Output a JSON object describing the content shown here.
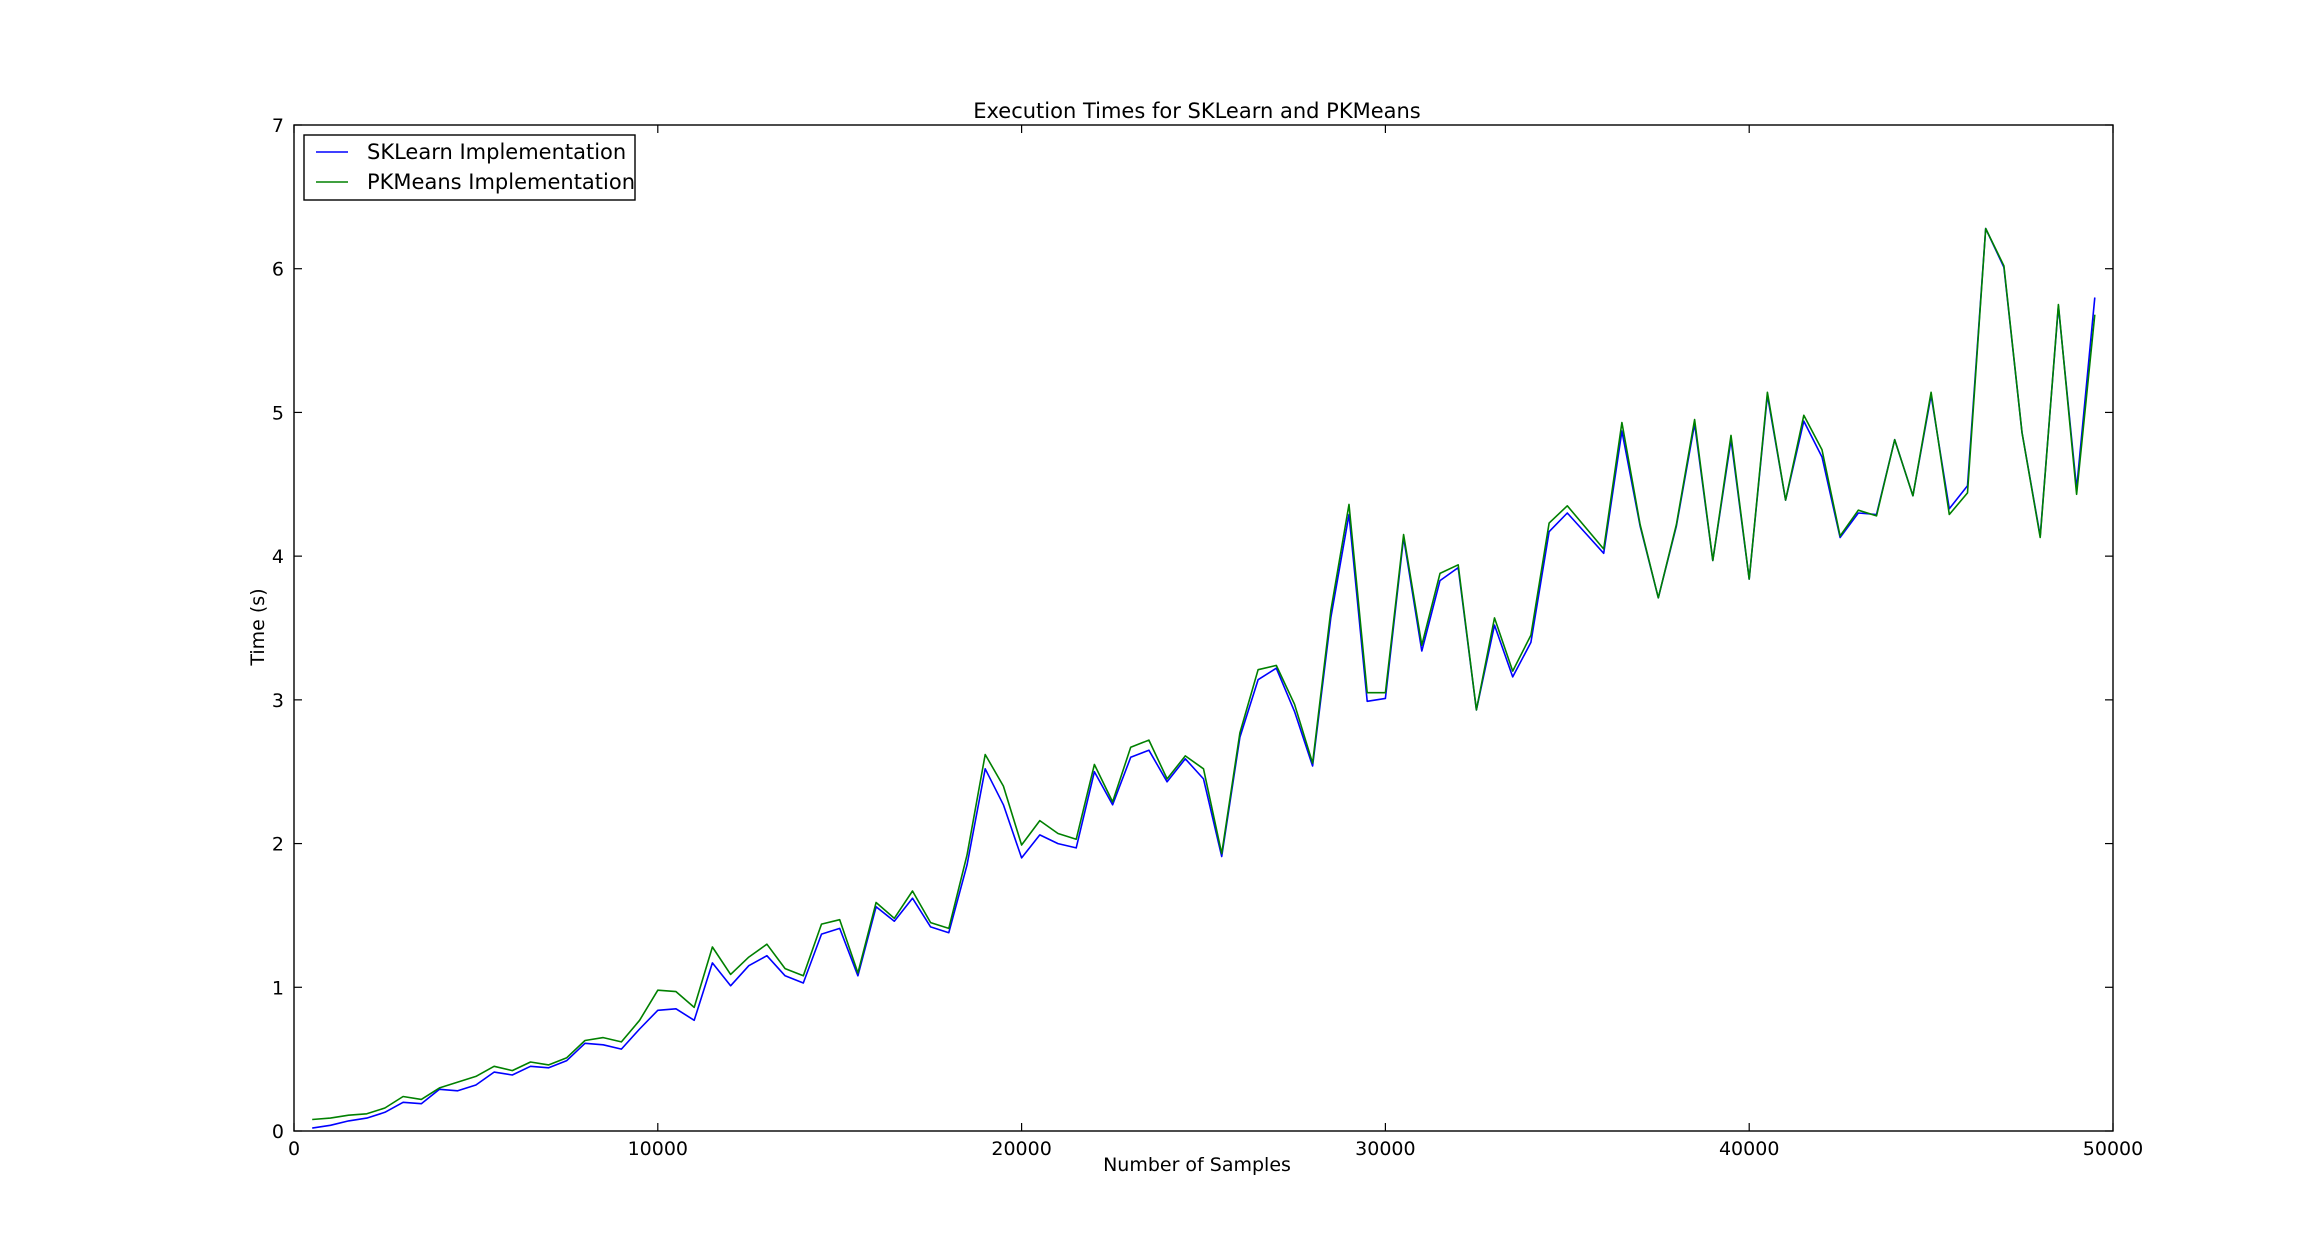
{
  "chart_data": {
    "type": "line",
    "title": "Execution Times for SKLearn and PKMeans",
    "xlabel": "Number of Samples",
    "ylabel": "Time (s)",
    "xlim": [
      0,
      50000
    ],
    "ylim": [
      0,
      7
    ],
    "xticks": [
      0,
      10000,
      20000,
      30000,
      40000,
      50000
    ],
    "xtick_labels": [
      "0",
      "10000",
      "20000",
      "30000",
      "40000",
      "50000"
    ],
    "yticks": [
      0,
      1,
      2,
      3,
      4,
      5,
      6,
      7
    ],
    "ytick_labels": [
      "0",
      "1",
      "2",
      "3",
      "4",
      "5",
      "6",
      "7"
    ],
    "grid": false,
    "legend_position": "top-left",
    "x": [
      500,
      1000,
      1500,
      2000,
      2500,
      3000,
      3500,
      4000,
      4500,
      5000,
      5500,
      6000,
      6500,
      7000,
      7500,
      8000,
      8500,
      9000,
      9500,
      10000,
      10500,
      11000,
      11500,
      12000,
      12500,
      13000,
      13500,
      14000,
      14500,
      15000,
      15500,
      16000,
      16500,
      17000,
      17500,
      18000,
      18500,
      19000,
      19500,
      20000,
      20500,
      21000,
      21500,
      22000,
      22500,
      23000,
      23500,
      24000,
      24500,
      25000,
      25500,
      26000,
      26500,
      27000,
      27500,
      28000,
      28500,
      29000,
      29500,
      30000,
      30500,
      31000,
      31500,
      32000,
      32500,
      33000,
      33500,
      34000,
      34500,
      35000,
      35500,
      36000,
      36500,
      37000,
      37500,
      38000,
      38500,
      39000,
      39500,
      40000,
      40500,
      41000,
      41500,
      42000,
      42500,
      43000,
      43500,
      44000,
      44500,
      45000,
      45500,
      46000,
      46500,
      47000,
      47500,
      48000,
      48500,
      49000,
      49500
    ],
    "series": [
      {
        "name": "SKLearn Implementation",
        "color": "#0000ff",
        "values": [
          0.02,
          0.04,
          0.07,
          0.09,
          0.13,
          0.2,
          0.19,
          0.29,
          0.28,
          0.32,
          0.41,
          0.39,
          0.45,
          0.44,
          0.49,
          0.61,
          0.6,
          0.57,
          0.71,
          0.84,
          0.85,
          0.77,
          1.17,
          1.01,
          1.15,
          1.22,
          1.08,
          1.03,
          1.37,
          1.41,
          1.08,
          1.56,
          1.46,
          1.62,
          1.42,
          1.38,
          1.85,
          2.52,
          2.27,
          1.9,
          2.06,
          2.0,
          1.97,
          2.5,
          2.27,
          2.6,
          2.65,
          2.43,
          2.59,
          2.45,
          1.91,
          2.74,
          3.14,
          3.22,
          2.92,
          2.54,
          3.57,
          4.29,
          2.99,
          3.01,
          4.13,
          3.34,
          3.83,
          3.92,
          2.93,
          3.52,
          3.16,
          3.4,
          4.17,
          4.3,
          4.16,
          4.02,
          4.87,
          4.21,
          3.71,
          4.21,
          4.92,
          3.97,
          4.81,
          3.84,
          5.12,
          4.39,
          4.94,
          4.69,
          4.13,
          4.3,
          4.29,
          4.81,
          4.42,
          5.12,
          4.33,
          4.49,
          6.28,
          6.01,
          4.86,
          4.14,
          5.74,
          4.47,
          5.8
        ]
      },
      {
        "name": "PKMeans Implementation",
        "color": "#008000",
        "values": [
          0.08,
          0.09,
          0.11,
          0.12,
          0.16,
          0.24,
          0.22,
          0.3,
          0.34,
          0.38,
          0.45,
          0.42,
          0.48,
          0.46,
          0.51,
          0.63,
          0.65,
          0.62,
          0.77,
          0.98,
          0.97,
          0.86,
          1.28,
          1.09,
          1.21,
          1.3,
          1.13,
          1.08,
          1.44,
          1.47,
          1.1,
          1.59,
          1.48,
          1.67,
          1.45,
          1.41,
          1.92,
          2.62,
          2.4,
          1.99,
          2.16,
          2.07,
          2.03,
          2.55,
          2.29,
          2.67,
          2.72,
          2.45,
          2.61,
          2.52,
          1.93,
          2.77,
          3.21,
          3.24,
          2.97,
          2.56,
          3.62,
          4.36,
          3.05,
          3.05,
          4.15,
          3.38,
          3.88,
          3.94,
          2.93,
          3.57,
          3.2,
          3.45,
          4.23,
          4.35,
          4.2,
          4.05,
          4.93,
          4.22,
          3.71,
          4.22,
          4.95,
          3.97,
          4.84,
          3.84,
          5.14,
          4.39,
          4.98,
          4.74,
          4.14,
          4.32,
          4.28,
          4.81,
          4.42,
          5.14,
          4.29,
          4.44,
          6.28,
          6.02,
          4.86,
          4.13,
          5.75,
          4.43,
          5.68
        ]
      }
    ]
  }
}
